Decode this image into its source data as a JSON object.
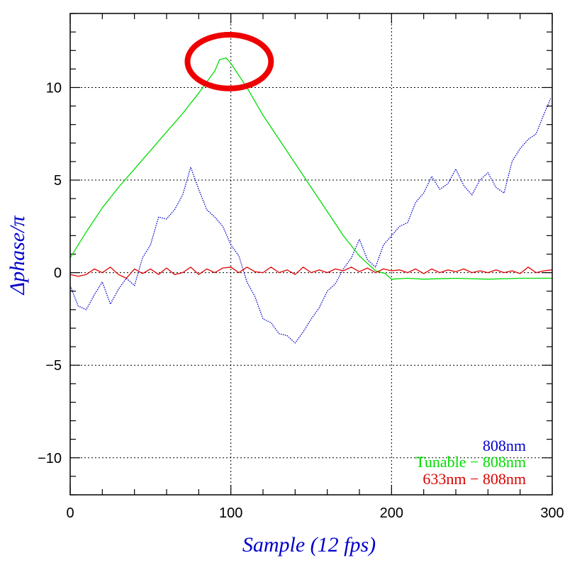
{
  "chart_data": {
    "type": "line",
    "xlabel": "Sample (12 fps)",
    "ylabel": "Δphase/π",
    "xlim": [
      0,
      300
    ],
    "ylim": [
      -12,
      14
    ],
    "x_ticks": [
      0,
      100,
      200,
      300
    ],
    "x_tick_labels": [
      "0",
      "100",
      "200",
      "300"
    ],
    "y_ticks": [
      -10,
      -5,
      0,
      5,
      10
    ],
    "y_tick_labels": [
      "−10",
      "−5",
      "0",
      "5",
      "10"
    ],
    "grid": "dotted, at major ticks",
    "legend_position": "bottom-right",
    "series": [
      {
        "name": "808nm",
        "color": "#0000cc",
        "style": "dotted",
        "x": [
          0,
          5,
          10,
          15,
          20,
          25,
          30,
          35,
          40,
          45,
          50,
          55,
          60,
          65,
          70,
          75,
          80,
          85,
          90,
          95,
          100,
          105,
          110,
          115,
          120,
          125,
          130,
          135,
          140,
          145,
          150,
          155,
          160,
          165,
          170,
          175,
          180,
          185,
          190,
          195,
          200,
          205,
          210,
          215,
          220,
          225,
          230,
          235,
          240,
          245,
          250,
          255,
          260,
          265,
          270,
          275,
          280,
          285,
          290,
          295,
          299
        ],
        "y": [
          -0.7,
          -1.8,
          -2.0,
          -1.2,
          -0.5,
          -1.7,
          -0.9,
          -0.3,
          -0.7,
          0.8,
          1.5,
          3.0,
          2.9,
          3.4,
          4.2,
          5.7,
          4.5,
          3.4,
          3.0,
          2.5,
          1.5,
          0.9,
          -0.5,
          -1.3,
          -2.5,
          -2.7,
          -3.3,
          -3.4,
          -3.8,
          -3.2,
          -2.5,
          -1.9,
          -1.0,
          -0.6,
          0.2,
          0.8,
          1.8,
          0.7,
          0.3,
          1.5,
          2.0,
          2.5,
          2.7,
          3.8,
          4.3,
          5.2,
          4.5,
          4.8,
          5.6,
          4.7,
          4.2,
          5.0,
          5.4,
          4.6,
          4.3,
          6.0,
          6.7,
          7.2,
          7.5,
          8.6,
          9.4
        ]
      },
      {
        "name": "Tunable − 808nm",
        "color": "#00dd00",
        "style": "solid",
        "x": [
          0,
          10,
          20,
          30,
          40,
          50,
          60,
          70,
          80,
          90,
          93,
          97,
          100,
          110,
          120,
          130,
          140,
          150,
          160,
          170,
          180,
          190,
          196,
          200,
          210,
          220,
          240,
          260,
          280,
          300
        ],
        "y": [
          0.8,
          2.2,
          3.5,
          4.6,
          5.6,
          6.6,
          7.6,
          8.6,
          9.7,
          10.9,
          11.5,
          11.6,
          11.3,
          10.0,
          8.5,
          7.2,
          5.9,
          4.6,
          3.3,
          2.0,
          0.9,
          0.1,
          -0.05,
          -0.35,
          -0.3,
          -0.35,
          -0.3,
          -0.35,
          -0.3,
          -0.3
        ]
      },
      {
        "name": "633nm − 808nm",
        "color": "#dd0000",
        "style": "solid",
        "x": [
          0,
          5,
          10,
          15,
          20,
          25,
          30,
          35,
          40,
          45,
          50,
          55,
          60,
          65,
          70,
          75,
          80,
          85,
          90,
          95,
          100,
          105,
          110,
          115,
          120,
          125,
          130,
          135,
          140,
          145,
          150,
          155,
          160,
          165,
          170,
          175,
          180,
          185,
          190,
          195,
          200,
          205,
          210,
          215,
          220,
          225,
          230,
          235,
          240,
          245,
          250,
          255,
          260,
          265,
          270,
          275,
          280,
          285,
          290,
          295,
          300
        ],
        "y": [
          -0.1,
          -0.2,
          -0.1,
          0.2,
          0.0,
          0.3,
          -0.1,
          -0.3,
          0.2,
          -0.05,
          0.2,
          -0.1,
          0.25,
          -0.1,
          0.0,
          0.3,
          -0.1,
          0.2,
          0.0,
          0.25,
          0.3,
          0.0,
          0.3,
          0.05,
          0.0,
          0.3,
          0.0,
          0.15,
          -0.1,
          0.3,
          0.0,
          0.15,
          0.0,
          0.2,
          0.1,
          0.3,
          0.05,
          0.25,
          0.0,
          0.2,
          0.1,
          0.15,
          0.0,
          0.2,
          -0.05,
          0.2,
          0.0,
          0.15,
          0.05,
          0.2,
          0.0,
          0.1,
          0.0,
          0.15,
          0.0,
          0.1,
          -0.05,
          0.3,
          0.0,
          0.1,
          0.15
        ]
      }
    ],
    "annotation": {
      "type": "ellipse",
      "color": "#ee0000",
      "center": [
        99,
        11.4
      ],
      "x_radius": 26,
      "y_radius": 1.45
    }
  }
}
